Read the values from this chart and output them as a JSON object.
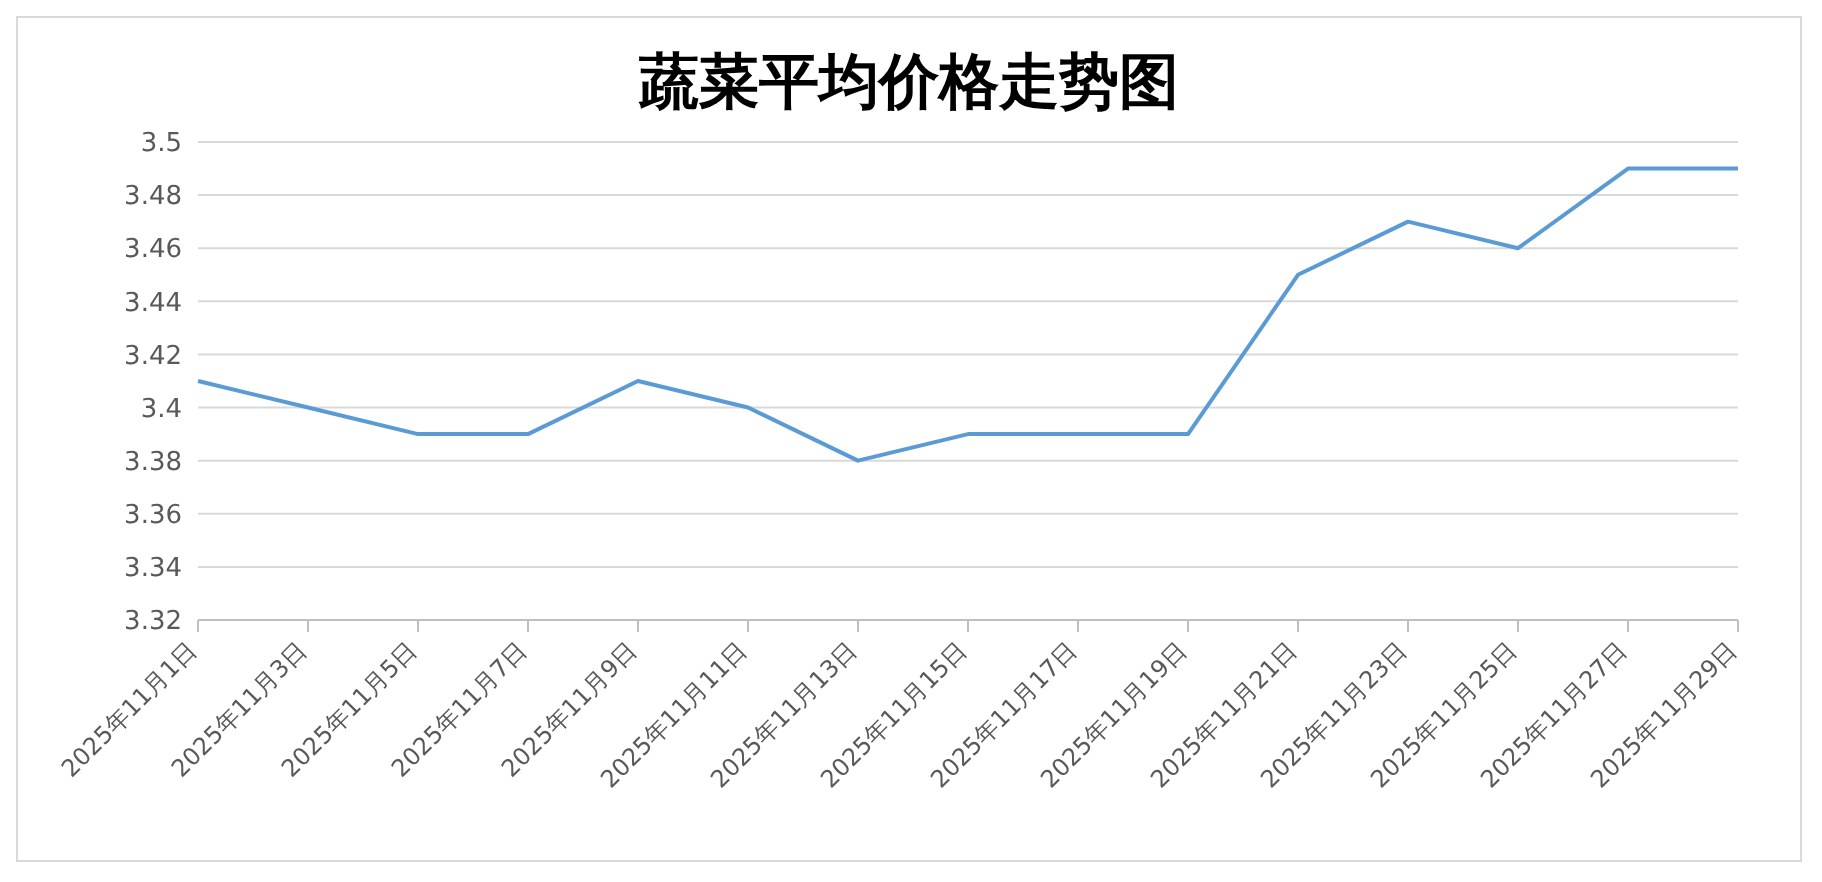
{
  "chart_data": {
    "type": "line",
    "title": "蔬菜平均价格走势图",
    "categories": [
      "2025年11月1日",
      "2025年11月3日",
      "2025年11月5日",
      "2025年11月7日",
      "2025年11月9日",
      "2025年11月11日",
      "2025年11月13日",
      "2025年11月15日",
      "2025年11月17日",
      "2025年11月19日",
      "2025年11月21日",
      "2025年11月23日",
      "2025年11月25日",
      "2025年11月27日",
      "2025年11月29日"
    ],
    "series": [
      {
        "color": "#5b9bd5",
        "values": [
          3.41,
          3.4,
          3.39,
          3.39,
          3.41,
          3.4,
          3.38,
          3.39,
          3.39,
          3.39,
          3.45,
          3.47,
          3.46,
          3.49,
          3.49
        ]
      }
    ],
    "ylim": [
      3.32,
      3.5
    ],
    "yticks": [
      3.32,
      3.34,
      3.36,
      3.38,
      3.4,
      3.42,
      3.44,
      3.46,
      3.48,
      3.5
    ],
    "grid": "y",
    "legend": false,
    "marker": "none",
    "line_style": "solid"
  }
}
